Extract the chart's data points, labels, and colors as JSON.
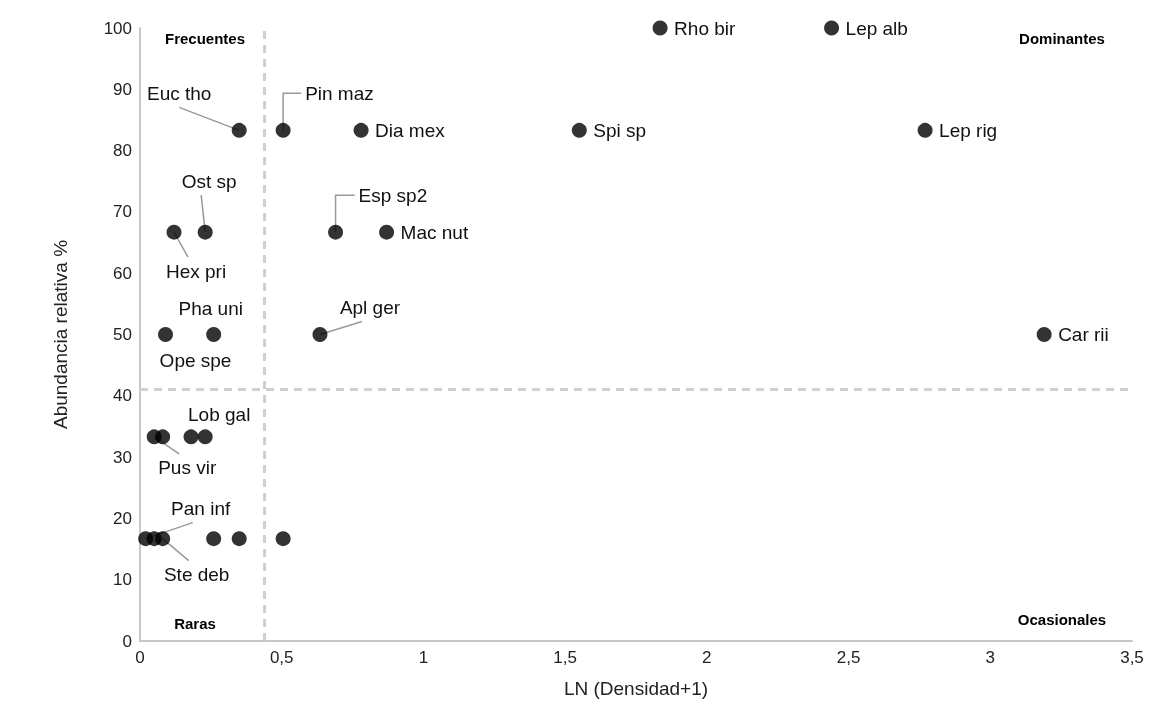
{
  "chart_data": {
    "type": "scatter",
    "xlabel": "LN (Densidad+1)",
    "ylabel": "Abundancia relativa %",
    "x": [
      1.835,
      2.44,
      0.35,
      0.505,
      0.78,
      1.55,
      2.77,
      0.12,
      0.23,
      0.69,
      0.87,
      0.09,
      0.26,
      0.635,
      3.19,
      0.05,
      0.08,
      0.18,
      0.23,
      0.02,
      0.05,
      0.08,
      0.26,
      0.35,
      0.505
    ],
    "values": [
      100,
      100,
      83.3,
      83.3,
      83.3,
      83.3,
      83.3,
      66.7,
      66.7,
      66.7,
      66.7,
      50,
      50,
      50,
      50,
      33.3,
      33.3,
      33.3,
      33.3,
      16.7,
      16.7,
      16.7,
      16.7,
      16.7,
      16.7
    ],
    "color": "#000000",
    "marker": "circle",
    "grid": false,
    "xlim": [
      0,
      3.5
    ],
    "xticks": [
      0,
      {
        "value": 0.5,
        "label": "0,5"
      },
      1,
      {
        "value": 1.5,
        "label": "1,5"
      },
      2,
      {
        "value": 2.5,
        "label": "2,5"
      },
      3,
      {
        "value": 3.5,
        "label": "3,5"
      }
    ],
    "ylim": [
      0,
      100
    ],
    "yticks": [
      0,
      10,
      20,
      30,
      40,
      50,
      60,
      70,
      80,
      90,
      100
    ],
    "ref_lines": [
      {
        "axis": "x",
        "value": 0.44,
        "color": "#d0d0d0",
        "line_style": "dashed"
      },
      {
        "axis": "y",
        "value": 41,
        "color": "#d0d0d0",
        "line_style": "dashed"
      }
    ],
    "annotations": [
      "Frecuentes",
      "Dominantes",
      "Ocasionales",
      "Raras",
      {
        "text": "Rho bir",
        "x": 1.835,
        "y": 100
      },
      {
        "text": "Lep alb",
        "x": 2.44,
        "y": 100
      },
      {
        "text": "Euc tho",
        "x": 0.35,
        "y": 83.3
      },
      {
        "text": "Pin maz",
        "x": 0.505,
        "y": 83.3
      },
      {
        "text": "Dia mex",
        "x": 0.78,
        "y": 83.3
      },
      {
        "text": "Spi sp",
        "x": 1.55,
        "y": 83.3
      },
      {
        "text": "Lep rig",
        "x": 2.77,
        "y": 83.3
      },
      {
        "text": "Ost sp",
        "x": 0.23,
        "y": 66.7
      },
      {
        "text": "Hex pri",
        "x": 0.12,
        "y": 66.7
      },
      {
        "text": "Esp sp2",
        "x": 0.69,
        "y": 66.7
      },
      {
        "text": "Mac nut",
        "x": 0.87,
        "y": 66.7
      },
      {
        "text": "Pha uni",
        "x": 0.26,
        "y": 50
      },
      {
        "text": "Ope spe",
        "x": 0.09,
        "y": 50
      },
      {
        "text": "Apl ger",
        "x": 0.635,
        "y": 50
      },
      {
        "text": "Car rii",
        "x": 3.19,
        "y": 50
      },
      {
        "text": "Lob gal",
        "x": 0.23,
        "y": 33.3
      },
      {
        "text": "Pus vir",
        "x": 0.05,
        "y": 33.3
      },
      {
        "text": "Pan inf",
        "x": 0.02,
        "y": 16.7
      },
      {
        "text": "Ste deb",
        "x": 0.08,
        "y": 16.7
      }
    ]
  }
}
